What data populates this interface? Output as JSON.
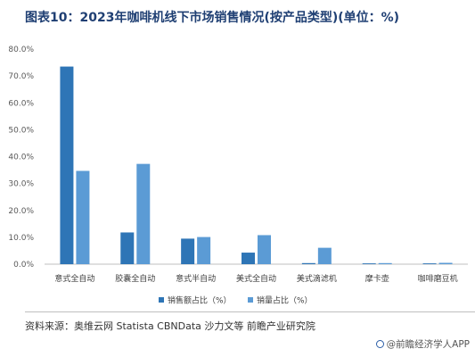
{
  "title": "图表10：2023年咖啡机线下市场销售情况(按产品类型)(单位：%)",
  "source": "资料来源：奥维云网 Statista CBNData 沙力文等 前瞻产业研究院",
  "brand": "@前瞻经济学人APP",
  "colors": {
    "series1": "#2e75b6",
    "series2": "#5b9bd5",
    "title": "#1f3f73",
    "axis": "#bfbfbf"
  },
  "chart_data": {
    "type": "bar",
    "categories": [
      "意式全自动",
      "胶囊全自动",
      "意式半自动",
      "美式全自动",
      "美式滴滤机",
      "摩卡壶",
      "咖啡磨豆机"
    ],
    "series": [
      {
        "name": "销售额占比（%）",
        "values": [
          73.5,
          11.8,
          9.5,
          4.3,
          0.4,
          0.3,
          0.3
        ]
      },
      {
        "name": "销量占比（%）",
        "values": [
          34.7,
          37.3,
          10.1,
          10.8,
          6.1,
          0.4,
          0.5
        ]
      }
    ],
    "ylim": [
      0,
      80
    ],
    "yticks": [
      "0.0%",
      "10.0%",
      "20.0%",
      "30.0%",
      "40.0%",
      "50.0%",
      "60.0%",
      "70.0%",
      "80.0%"
    ],
    "legend": "bottom",
    "grid": false
  }
}
